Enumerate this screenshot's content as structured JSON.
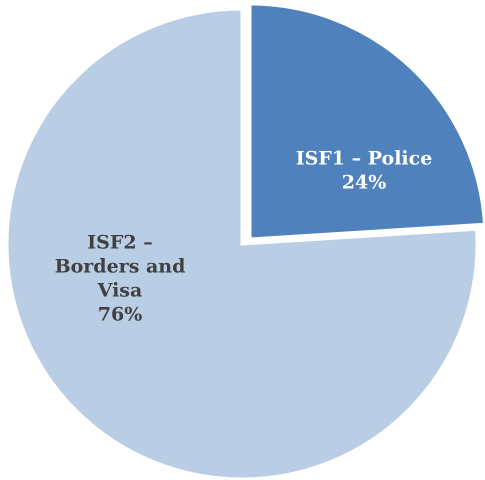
{
  "chart_data": {
    "type": "pie",
    "title": "",
    "slices": [
      {
        "label_lines": [
          "ISF1 – Police"
        ],
        "percent_label": "24%",
        "value": 24,
        "color": "#4f81bd",
        "label_color": "#ffffff"
      },
      {
        "label_lines": [
          "ISF2 –",
          "Borders and",
          "Visa"
        ],
        "percent_label": "76%",
        "value": 76,
        "color": "#b9cde5",
        "label_color": "#404040"
      }
    ],
    "start_angle": "12 o'clock",
    "direction": "clockwise",
    "exploded_slice": "ISF1 – Police",
    "slice_border_color": "#ffffff"
  }
}
